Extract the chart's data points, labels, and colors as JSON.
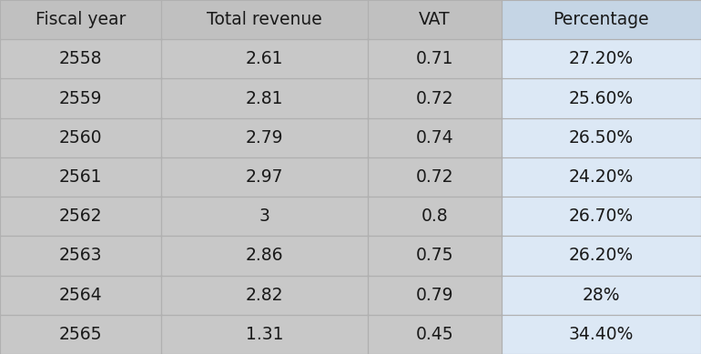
{
  "columns": [
    "Fiscal year",
    "Total revenue",
    "VAT",
    "Percentage"
  ],
  "rows": [
    [
      "2558",
      "2.61",
      "0.71",
      "27.20%"
    ],
    [
      "2559",
      "2.81",
      "0.72",
      "25.60%"
    ],
    [
      "2560",
      "2.79",
      "0.74",
      "26.50%"
    ],
    [
      "2561",
      "2.97",
      "0.72",
      "24.20%"
    ],
    [
      "2562",
      "3",
      "0.8",
      "26.70%"
    ],
    [
      "2563",
      "2.86",
      "0.75",
      "26.20%"
    ],
    [
      "2564",
      "2.82",
      "0.79",
      "28%"
    ],
    [
      "2565",
      "1.31",
      "0.45",
      "34.40%"
    ]
  ],
  "header_bg": "#c0c0c0",
  "row_bg": "#c8c8c8",
  "percentage_col_bg": "#dce8f5",
  "header_percentage_bg": "#c5d5e5",
  "border_color": "#a0a0a0",
  "text_color": "#1a1a1a",
  "font_size": 13.5,
  "header_font_size": 13.5,
  "fig_bg": "#ffffff",
  "col_props": [
    0.23,
    0.295,
    0.19,
    0.285
  ]
}
